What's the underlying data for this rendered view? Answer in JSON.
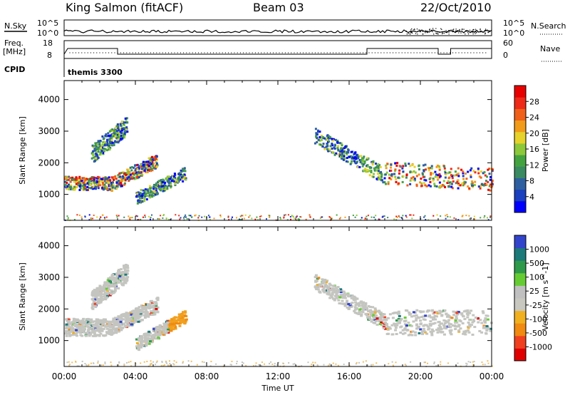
{
  "header": {
    "title": "King Salmon (fitACF)",
    "beam": "Beam 03",
    "date": "22/Oct/2010"
  },
  "top_panel": {
    "left_label": "N.Sky",
    "left_ticks": [
      "10^5",
      "10^0"
    ],
    "right_ticks": [
      "10^5",
      "10^0"
    ],
    "right_label": "N.Search"
  },
  "freq_panel": {
    "left_label_1": "Freq.",
    "left_label_2": "[MHz]",
    "left_ticks": [
      "18",
      "8"
    ],
    "right_ticks": [
      "60",
      "0"
    ],
    "right_label": "Nave"
  },
  "cpid": {
    "label": "CPID",
    "value": "themis 3300"
  },
  "x_axis": {
    "ticks": [
      "00:00",
      "04:00",
      "08:00",
      "12:00",
      "16:00",
      "20:00",
      "00:00"
    ],
    "label": "Time UT"
  },
  "colors": {
    "power": [
      "#0000ff",
      "#1a3fbf",
      "#2e5fa0",
      "#3a8a62",
      "#44a340",
      "#8cc83a",
      "#e6d22a",
      "#f29a1a",
      "#f0601a",
      "#ef2a18",
      "#e80000"
    ],
    "velocity": [
      "#3344cc",
      "#1c7a7a",
      "#2e9a4a",
      "#66cc33",
      "#c0c0c0",
      "#c8c8c0",
      "#f0b020",
      "#f08a10",
      "#f04020",
      "#e00000"
    ]
  },
  "chart_data": [
    {
      "type": "heatmap",
      "ylabel": "Slant Range [km]",
      "yticks": [
        1000,
        2000,
        3000,
        4000
      ],
      "ylim": [
        180,
        4600
      ],
      "xlim": [
        0,
        24
      ],
      "colorbar_label": "Power [dB]",
      "colorbar_ticks": [
        "4",
        "8",
        "12",
        "16",
        "20",
        "24",
        "28"
      ],
      "features": [
        {
          "t": [
            0.0,
            2.6
          ],
          "r": [
            1100,
            1700
          ]
        },
        {
          "t": [
            2.6,
            5.2
          ],
          "r": [
            1200,
            2200
          ]
        },
        {
          "t": [
            1.5,
            3.5
          ],
          "r": [
            2200,
            3300
          ]
        },
        {
          "t": [
            4.0,
            6.8
          ],
          "r": [
            700,
            1800
          ]
        },
        {
          "t": [
            14.0,
            18.0
          ],
          "r": [
            1600,
            3000
          ]
        },
        {
          "t": [
            18.0,
            24.0
          ],
          "r": [
            1100,
            2300
          ]
        }
      ]
    },
    {
      "type": "heatmap",
      "ylabel": "Slant Range [km]",
      "yticks": [
        1000,
        2000,
        3000,
        4000
      ],
      "ylim": [
        180,
        4600
      ],
      "xlim": [
        0,
        24
      ],
      "colorbar_label": "Velocity [m s^-1]",
      "colorbar_ticks": [
        "1000",
        "500",
        "100",
        "25",
        "-25",
        "-100",
        "-500",
        "-1000"
      ]
    }
  ]
}
